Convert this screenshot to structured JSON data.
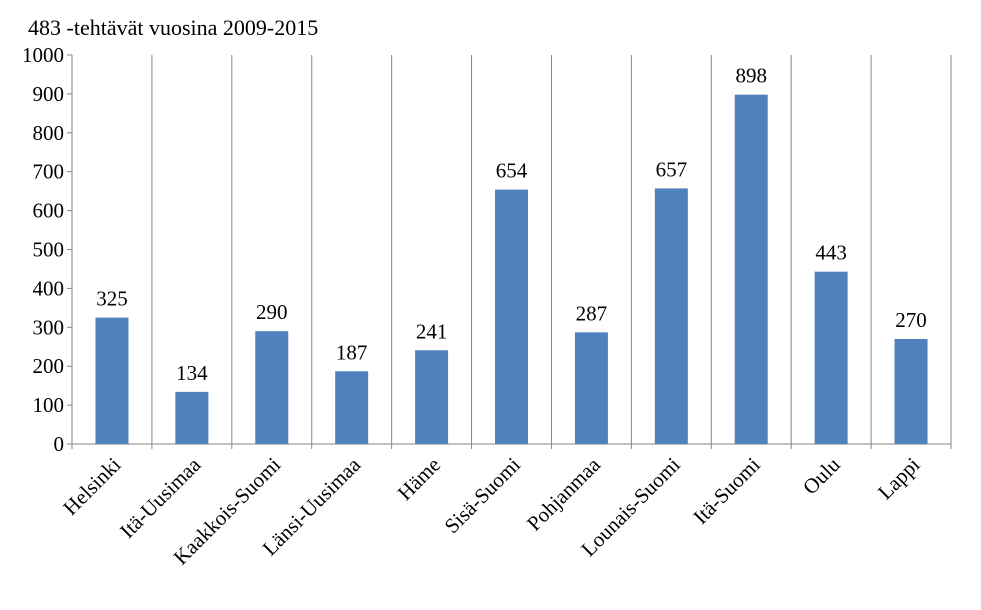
{
  "chart_data": {
    "type": "bar",
    "title": "483 -tehtävät vuosina 2009-2015",
    "xlabel": "",
    "ylabel": "",
    "categories": [
      "Helsinki",
      "Itä-Uusimaa",
      "Kaakkois-Suomi",
      "Länsi-Uusimaa",
      "Häme",
      "Sisä-Suomi",
      "Pohjanmaa",
      "Lounais-Suomi",
      "Itä-Suomi",
      "Oulu",
      "Lappi"
    ],
    "series": [
      {
        "values": [
          325,
          134,
          290,
          187,
          241,
          654,
          287,
          657,
          898,
          443,
          270
        ],
        "color": "#4F81BD"
      }
    ],
    "ylim": [
      0,
      1000
    ],
    "yticks": [
      0,
      100,
      200,
      300,
      400,
      500,
      600,
      700,
      800,
      900,
      1000
    ],
    "grid": "vertical",
    "legend": "none",
    "data_labels": true
  }
}
